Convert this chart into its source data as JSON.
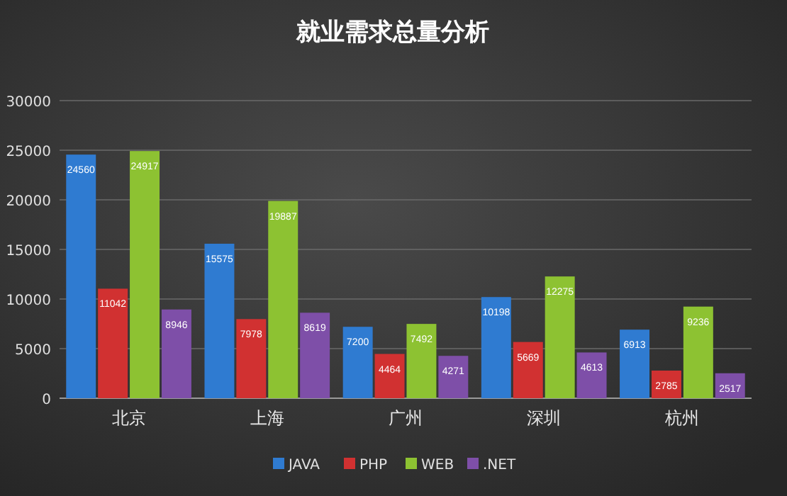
{
  "chart_data": {
    "type": "bar",
    "title": "就业需求总量分析",
    "categories": [
      "北京",
      "上海",
      "广州",
      "深圳",
      "杭州"
    ],
    "series": [
      {
        "name": "JAVA",
        "color": "#2f7bd1",
        "values": [
          24560,
          15575,
          7200,
          10198,
          6913
        ]
      },
      {
        "name": "PHP",
        "color": "#d13131",
        "values": [
          11042,
          7978,
          4464,
          5669,
          2785
        ]
      },
      {
        "name": "WEB",
        "color": "#8dc232",
        "values": [
          24917,
          19887,
          7492,
          12275,
          9236
        ]
      },
      {
        "name": ".NET",
        "color": "#7e4fa8",
        "values": [
          8946,
          8619,
          4271,
          4613,
          2517
        ]
      }
    ],
    "ylim": [
      0,
      30000
    ],
    "yticks": [
      0,
      5000,
      10000,
      15000,
      20000,
      25000,
      30000
    ],
    "grid": "y",
    "legend": "bottom",
    "data_labels": true
  }
}
